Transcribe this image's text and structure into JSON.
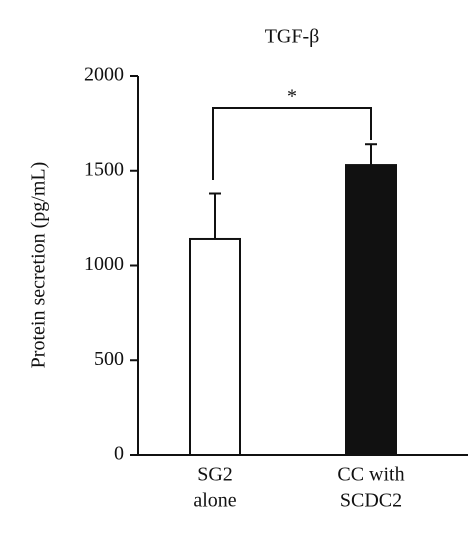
{
  "chart_data": {
    "type": "bar",
    "title": "TGF-β",
    "ylabel": "Protein secretion (pg/mL)",
    "categories": [
      [
        "SG2",
        "alone"
      ],
      [
        "CC with",
        "SCDC2"
      ]
    ],
    "values": [
      1140,
      1530
    ],
    "errors": [
      240,
      110
    ],
    "colors": [
      "#ffffff",
      "#111111"
    ],
    "ylim": [
      0,
      2000
    ],
    "yticks": [
      0,
      500,
      1000,
      1500,
      2000
    ],
    "annotation": "*"
  }
}
